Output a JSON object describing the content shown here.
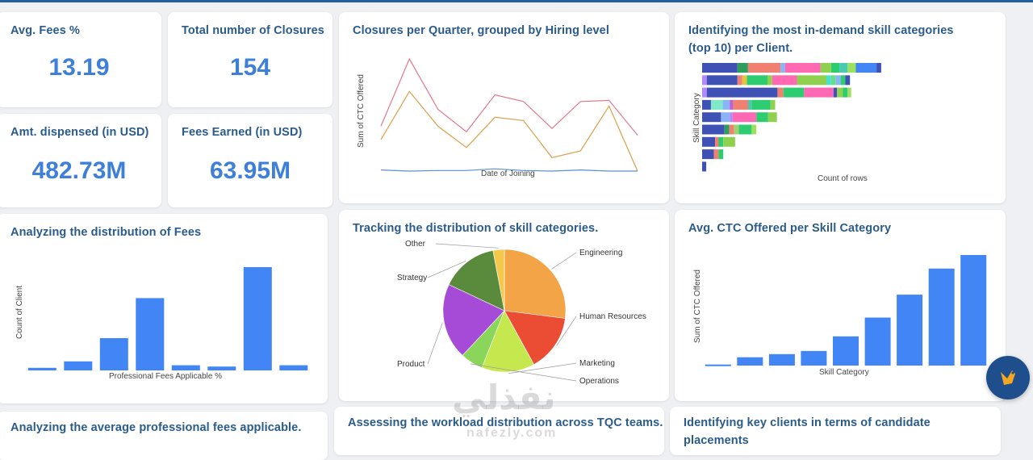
{
  "kpis": {
    "avg_fees": {
      "label": "Avg. Fees %",
      "value": "13.19"
    },
    "total_closures": {
      "label": "Total number of Closures",
      "value": "154"
    },
    "amt_dispensed": {
      "label": "Amt. dispensed (in USD)",
      "value": "482.73M"
    },
    "fees_earned": {
      "label": "Fees Earned (in USD)",
      "value": "63.95M"
    }
  },
  "titles": {
    "closures_quarter": "Closures per Quarter, grouped by Hiring level",
    "skill_demand": "Identifying the most in-demand skill categories (top 10) per Client.",
    "fees_distribution": "Analyzing the distribution of Fees",
    "skill_distribution": "Tracking the distribution of skill categories.",
    "ctc_per_skill": "Avg. CTC Offered per Skill Category",
    "avg_prof_fees": "Analyzing the average professional fees applicable.",
    "workload": "Assessing the workload distribution across TQC teams.",
    "key_clients": "Identifying key clients in terms of candidate placements"
  },
  "watermark": {
    "arabic": "نفذلي",
    "latin": "nafezly.com"
  },
  "colors": {
    "accent": "#3d7fd9",
    "title": "#2a5b8a"
  },
  "chart_data": [
    {
      "type": "line",
      "xlabel": "Date of Joining",
      "ylabel": "Sum of CTC Offered",
      "series": [
        {
          "color": "#e0788f",
          "values": [
            40,
            100,
            55,
            35,
            68,
            62,
            38,
            62,
            63,
            32
          ]
        },
        {
          "color": "#d9a04a",
          "values": [
            28,
            71,
            40,
            21,
            48,
            45,
            12,
            18,
            58,
            0
          ]
        },
        {
          "color": "#5b8fd6",
          "values": [
            1,
            0,
            0.5,
            0.5,
            2,
            0.5,
            0,
            1,
            0,
            0
          ]
        }
      ]
    },
    {
      "type": "bar",
      "orientation": "horizontal",
      "stacked": true,
      "xlabel": "Count of rows",
      "ylabel": "Skill Category",
      "rows": [
        [
          {
            "c": "#3f51b5",
            "v": 60
          },
          {
            "c": "#2e9e5b",
            "v": 18
          },
          {
            "c": "#f08070",
            "v": 55
          },
          {
            "c": "#8ab4f8",
            "v": 8
          },
          {
            "c": "#ff69b4",
            "v": 60
          },
          {
            "c": "#8fd14f",
            "v": 18
          },
          {
            "c": "#2ecc71",
            "v": 14
          },
          {
            "c": "#48c9b0",
            "v": 14
          },
          {
            "c": "#9be15d",
            "v": 14
          },
          {
            "c": "#4285f4",
            "v": 35
          },
          {
            "c": "#3f51b5",
            "v": 8
          }
        ],
        [
          {
            "c": "#b388ff",
            "v": 8
          },
          {
            "c": "#3f51b5",
            "v": 52
          },
          {
            "c": "#f08070",
            "v": 8
          },
          {
            "c": "#e1c542",
            "v": 8
          },
          {
            "c": "#2ecc71",
            "v": 35
          },
          {
            "c": "#8fd14f",
            "v": 8
          },
          {
            "c": "#ff69b4",
            "v": 42
          },
          {
            "c": "#8fd14f",
            "v": 50
          },
          {
            "c": "#48e0d0",
            "v": 8
          },
          {
            "c": "#66dd88",
            "v": 8
          },
          {
            "c": "#8ab4f8",
            "v": 8
          },
          {
            "c": "#2ecc71",
            "v": 8
          },
          {
            "c": "#3f51b5",
            "v": 8
          }
        ],
        [
          {
            "c": "#b388ff",
            "v": 8
          },
          {
            "c": "#3f51b5",
            "v": 120
          },
          {
            "c": "#f08070",
            "v": 10
          },
          {
            "c": "#2ecc71",
            "v": 35
          },
          {
            "c": "#ff69b4",
            "v": 50
          },
          {
            "c": "#3f51b5",
            "v": 6
          },
          {
            "c": "#8fd14f",
            "v": 10
          },
          {
            "c": "#2ecc71",
            "v": 8
          },
          {
            "c": "#9be15d",
            "v": 6
          }
        ],
        [
          {
            "c": "#3f51b5",
            "v": 15
          },
          {
            "c": "#7ee8c8",
            "v": 20
          },
          {
            "c": "#8ab4f8",
            "v": 12
          },
          {
            "c": "#c060d0",
            "v": 6
          },
          {
            "c": "#f08070",
            "v": 25
          },
          {
            "c": "#48c9b0",
            "v": 6
          },
          {
            "c": "#2ecc71",
            "v": 32
          },
          {
            "c": "#8fd14f",
            "v": 8
          }
        ],
        [
          {
            "c": "#3f51b5",
            "v": 32
          },
          {
            "c": "#8ab4f8",
            "v": 15
          },
          {
            "c": "#b388ff",
            "v": 5
          },
          {
            "c": "#ff69b4",
            "v": 40
          },
          {
            "c": "#2ecc71",
            "v": 20
          },
          {
            "c": "#8fd14f",
            "v": 15
          }
        ],
        [
          {
            "c": "#3f51b5",
            "v": 38
          },
          {
            "c": "#2e9e5b",
            "v": 8
          },
          {
            "c": "#f08070",
            "v": 8
          },
          {
            "c": "#a0d070",
            "v": 8
          },
          {
            "c": "#2ecc71",
            "v": 22
          },
          {
            "c": "#9be15d",
            "v": 8
          }
        ],
        [
          {
            "c": "#3f51b5",
            "v": 22
          },
          {
            "c": "#f08070",
            "v": 6
          },
          {
            "c": "#2ecc71",
            "v": 8
          },
          {
            "c": "#8fd14f",
            "v": 20
          }
        ],
        [
          {
            "c": "#3f51b5",
            "v": 20
          },
          {
            "c": "#f08070",
            "v": 8
          },
          {
            "c": "#2ecc71",
            "v": 8
          }
        ],
        [
          {
            "c": "#3f51b5",
            "v": 7
          }
        ]
      ]
    },
    {
      "type": "bar",
      "xlabel": "Professional Fees Applicable %",
      "ylabel": "Count of Client",
      "values": [
        2,
        7,
        25,
        56,
        4,
        3,
        80,
        4
      ],
      "color": "#4285f4"
    },
    {
      "type": "pie",
      "slices": [
        {
          "label": "Engineering",
          "value": 27,
          "color": "#f2a446"
        },
        {
          "label": "Human Resources",
          "value": 15,
          "color": "#ea4d33"
        },
        {
          "label": "Marketing",
          "value": 14,
          "color": "#c6e84f"
        },
        {
          "label": "Operations",
          "value": 6,
          "color": "#8ad65a"
        },
        {
          "label": "Product",
          "value": 20,
          "color": "#a64ad8"
        },
        {
          "label": "Strategy",
          "value": 15,
          "color": "#5a8a3c"
        },
        {
          "label": "Other",
          "value": 3,
          "color": "#f4c84a"
        }
      ]
    },
    {
      "type": "bar",
      "xlabel": "Skill Category",
      "ylabel": "Sum of CTC Offered",
      "values": [
        1,
        8,
        11,
        14,
        28,
        46,
        68,
        93,
        106
      ],
      "color": "#4285f4"
    }
  ]
}
